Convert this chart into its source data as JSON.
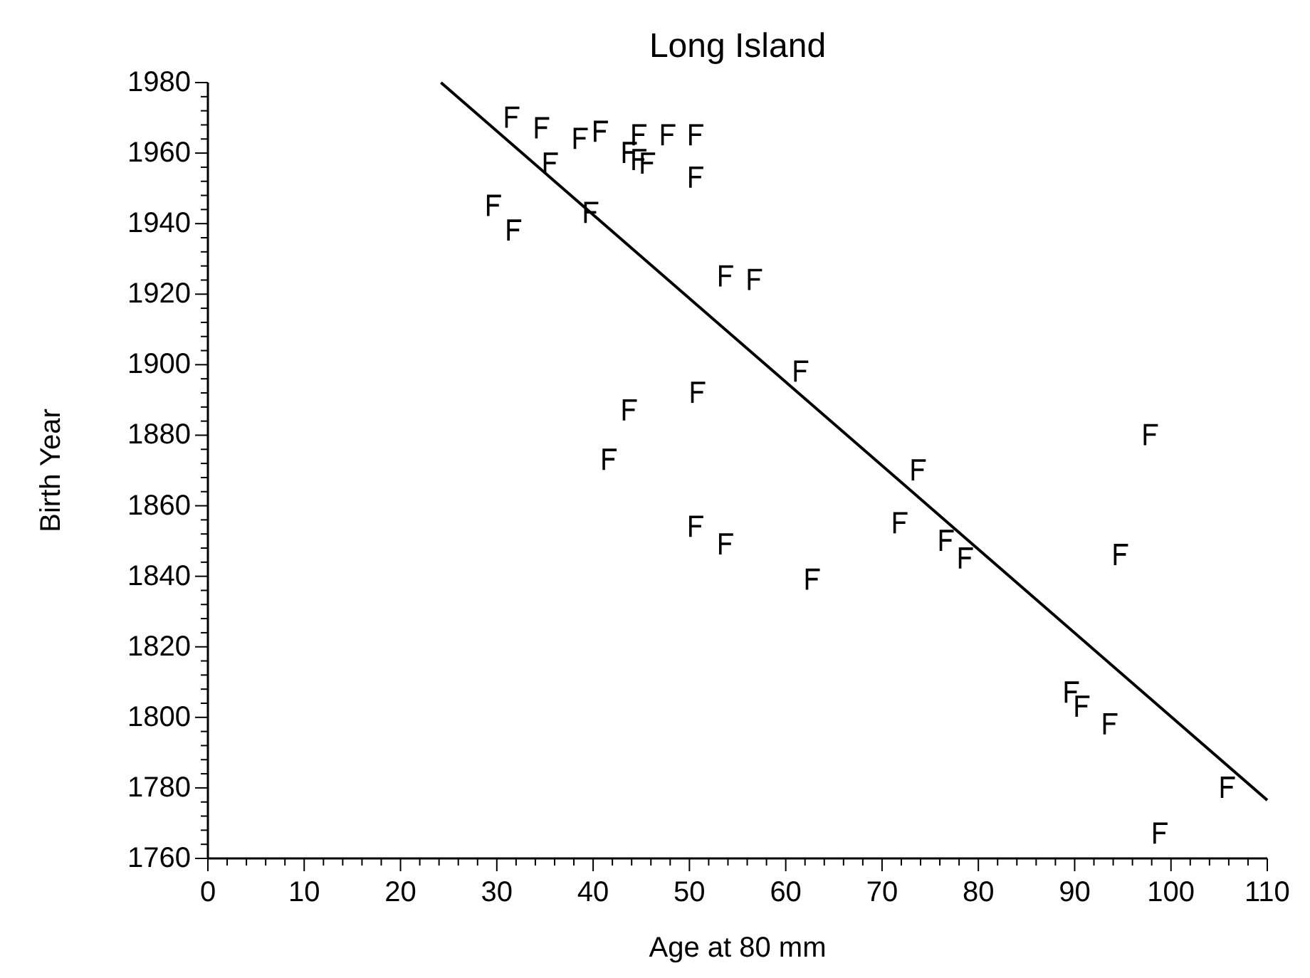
{
  "chart_data": {
    "type": "scatter",
    "title": "Long Island",
    "xlabel": "Age at 80 mm",
    "ylabel": "Birth Year",
    "xlim": [
      0,
      110
    ],
    "ylim": [
      1760,
      1980
    ],
    "xticks": [
      0,
      {
        "value": 2,
        "label": null
      },
      {
        "value": 4,
        "label": null
      },
      {
        "value": 6,
        "label": null
      },
      {
        "value": 8,
        "label": null
      },
      10,
      {
        "value": 12,
        "label": null
      },
      {
        "value": 14,
        "label": null
      },
      {
        "value": 16,
        "label": null
      },
      {
        "value": 18,
        "label": null
      },
      20,
      {
        "value": 22,
        "label": null
      },
      {
        "value": 24,
        "label": null
      },
      {
        "value": 26,
        "label": null
      },
      {
        "value": 28,
        "label": null
      },
      30,
      {
        "value": 32,
        "label": null
      },
      {
        "value": 34,
        "label": null
      },
      {
        "value": 36,
        "label": null
      },
      {
        "value": 38,
        "label": null
      },
      40,
      {
        "value": 42,
        "label": null
      },
      {
        "value": 44,
        "label": null
      },
      {
        "value": 46,
        "label": null
      },
      {
        "value": 48,
        "label": null
      },
      50,
      {
        "value": 52,
        "label": null
      },
      {
        "value": 54,
        "label": null
      },
      {
        "value": 56,
        "label": null
      },
      {
        "value": 58,
        "label": null
      },
      60,
      {
        "value": 62,
        "label": null
      },
      {
        "value": 64,
        "label": null
      },
      {
        "value": 66,
        "label": null
      },
      {
        "value": 68,
        "label": null
      },
      70,
      {
        "value": 72,
        "label": null
      },
      {
        "value": 74,
        "label": null
      },
      {
        "value": 76,
        "label": null
      },
      {
        "value": 78,
        "label": null
      },
      80,
      {
        "value": 82,
        "label": null
      },
      {
        "value": 84,
        "label": null
      },
      {
        "value": 86,
        "label": null
      },
      {
        "value": 88,
        "label": null
      },
      90,
      {
        "value": 92,
        "label": null
      },
      {
        "value": 94,
        "label": null
      },
      {
        "value": 96,
        "label": null
      },
      {
        "value": 98,
        "label": null
      },
      100,
      {
        "value": 102,
        "label": null
      },
      {
        "value": 104,
        "label": null
      },
      {
        "value": 106,
        "label": null
      },
      {
        "value": 108,
        "label": null
      },
      110
    ],
    "yticks": [
      1760,
      {
        "value": 1764,
        "label": null
      },
      {
        "value": 1768,
        "label": null
      },
      {
        "value": 1772,
        "label": null
      },
      {
        "value": 1776,
        "label": null
      },
      1780,
      {
        "value": 1784,
        "label": null
      },
      {
        "value": 1788,
        "label": null
      },
      {
        "value": 1792,
        "label": null
      },
      {
        "value": 1796,
        "label": null
      },
      1800,
      {
        "value": 1804,
        "label": null
      },
      {
        "value": 1808,
        "label": null
      },
      {
        "value": 1812,
        "label": null
      },
      {
        "value": 1816,
        "label": null
      },
      1820,
      {
        "value": 1824,
        "label": null
      },
      {
        "value": 1828,
        "label": null
      },
      {
        "value": 1832,
        "label": null
      },
      {
        "value": 1836,
        "label": null
      },
      1840,
      {
        "value": 1844,
        "label": null
      },
      {
        "value": 1848,
        "label": null
      },
      {
        "value": 1852,
        "label": null
      },
      {
        "value": 1856,
        "label": null
      },
      1860,
      {
        "value": 1864,
        "label": null
      },
      {
        "value": 1868,
        "label": null
      },
      {
        "value": 1872,
        "label": null
      },
      {
        "value": 1876,
        "label": null
      },
      1880,
      {
        "value": 1884,
        "label": null
      },
      {
        "value": 1888,
        "label": null
      },
      {
        "value": 1892,
        "label": null
      },
      {
        "value": 1896,
        "label": null
      },
      1900,
      {
        "value": 1904,
        "label": null
      },
      {
        "value": 1908,
        "label": null
      },
      {
        "value": 1912,
        "label": null
      },
      {
        "value": 1916,
        "label": null
      },
      1920,
      {
        "value": 1924,
        "label": null
      },
      {
        "value": 1928,
        "label": null
      },
      {
        "value": 1932,
        "label": null
      },
      {
        "value": 1936,
        "label": null
      },
      1940,
      {
        "value": 1944,
        "label": null
      },
      {
        "value": 1948,
        "label": null
      },
      {
        "value": 1952,
        "label": null
      },
      {
        "value": 1956,
        "label": null
      },
      1960,
      {
        "value": 1964,
        "label": null
      },
      {
        "value": 1968,
        "label": null
      },
      {
        "value": 1972,
        "label": null
      },
      {
        "value": 1976,
        "label": null
      },
      1980
    ],
    "grid": false,
    "series": [
      {
        "color": "#000000",
        "x": [
          31.6,
          34.7,
          38.7,
          40.8,
          43.8,
          44.8,
          44.8,
          45.7,
          47.8,
          50.7,
          50.7,
          35.6,
          29.7,
          31.8,
          39.8,
          53.8,
          56.8,
          50.9,
          43.8,
          41.7,
          50.7,
          53.8,
          62.8,
          61.6,
          97.9,
          73.8,
          71.9,
          76.7,
          78.7,
          94.8,
          89.7,
          90.8,
          93.7,
          105.9,
          98.9
        ],
        "values": [
          1970,
          1967,
          1964,
          1966,
          1960,
          1965,
          1958,
          1957,
          1965,
          1965,
          1953,
          1957,
          1945,
          1938,
          1943,
          1925,
          1924,
          1892,
          1887,
          1873,
          1854,
          1849,
          1839,
          1898,
          1880,
          1870,
          1855,
          1850,
          1845,
          1846,
          1807,
          1803,
          1798,
          1780,
          1767
        ]
      },
      {
        "type": "line",
        "color": "#000000",
        "marker": "none",
        "line_style": "solid",
        "x": [
          24.2,
          110
        ],
        "values": [
          1980,
          1776.5
        ]
      }
    ]
  }
}
